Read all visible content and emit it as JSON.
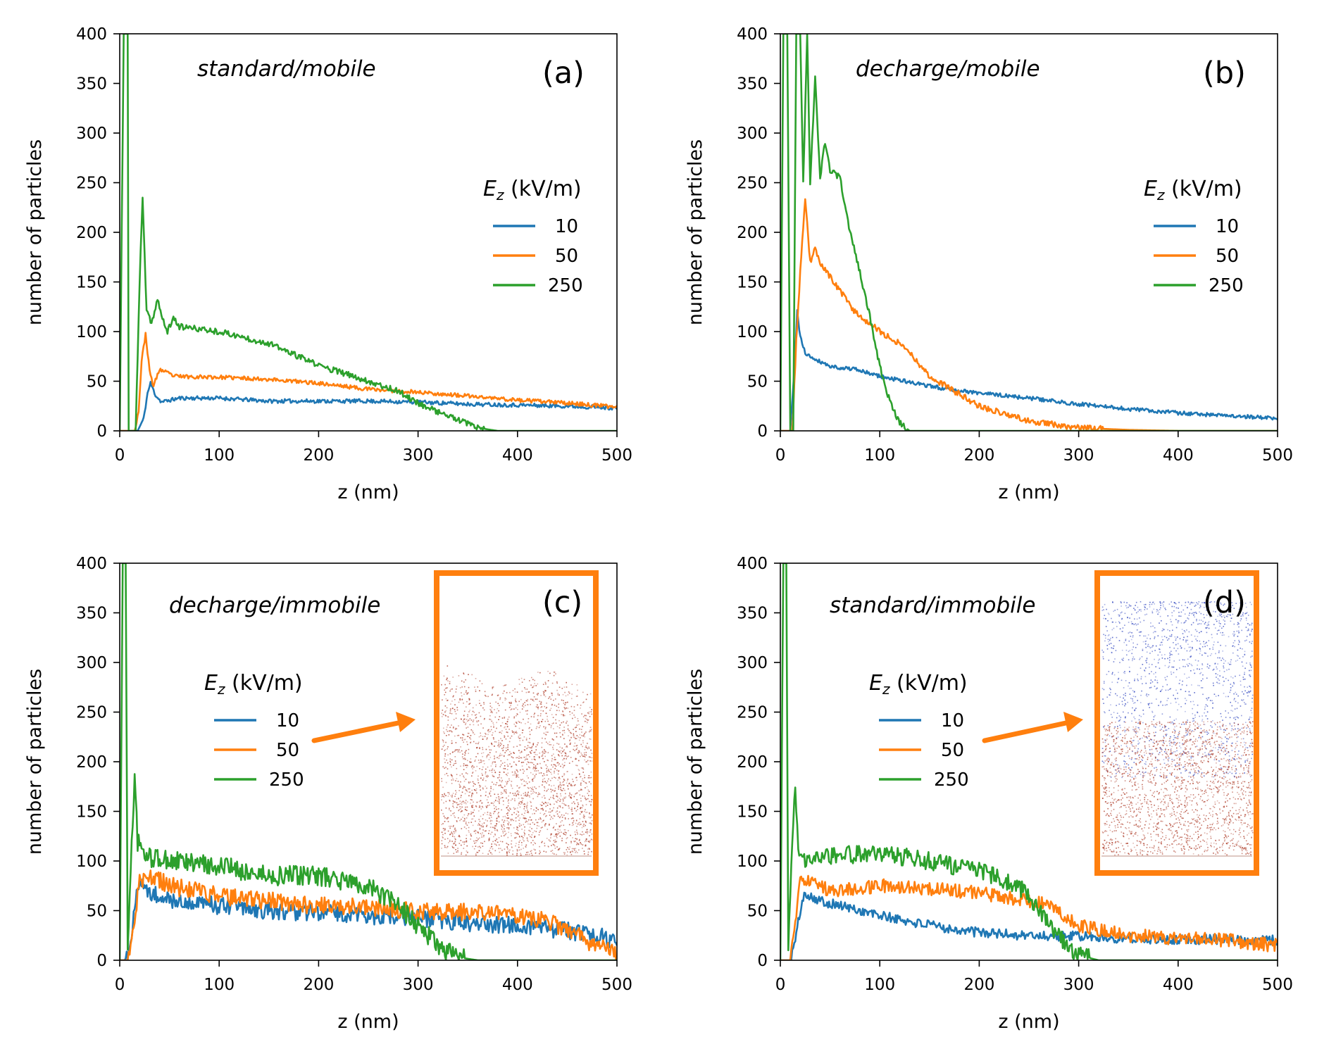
{
  "figure": {
    "width": 1870,
    "height": 1500
  },
  "colors": {
    "blue": "#1f77b4",
    "orange": "#ff7f0e",
    "green": "#2ca02c",
    "inset_frame": "#ff7f0e",
    "particle_red": "#b0412e",
    "particle_blue": "#3a4fc2"
  },
  "legend": {
    "title_main": "E",
    "title_sub": "z",
    "title_unit": " (kV/m)"
  },
  "chart_data": [
    {
      "panel": "a",
      "type": "line",
      "subtitle": "standard/mobile",
      "panel_label": "(a)",
      "xlabel": "z (nm)",
      "ylabel": "number of particles",
      "xlim": [
        0,
        500
      ],
      "ylim": [
        0,
        400
      ],
      "xticks": [
        0,
        100,
        200,
        300,
        400,
        500
      ],
      "yticks": [
        0,
        50,
        100,
        150,
        200,
        250,
        300,
        350,
        400
      ],
      "legend_position": "center-right",
      "legend_layout": "a",
      "inset": null,
      "series": [
        {
          "name": "10",
          "color_key": "blue",
          "noise": 2,
          "seed": 11,
          "points": [
            [
              0,
              0
            ],
            [
              18,
              0
            ],
            [
              24,
              12
            ],
            [
              28,
              38
            ],
            [
              31,
              48
            ],
            [
              36,
              36
            ],
            [
              42,
              29
            ],
            [
              60,
              33
            ],
            [
              100,
              33
            ],
            [
              150,
              30
            ],
            [
              200,
              30
            ],
            [
              250,
              30
            ],
            [
              300,
              29
            ],
            [
              350,
              27
            ],
            [
              400,
              26
            ],
            [
              450,
              25
            ],
            [
              500,
              23
            ]
          ]
        },
        {
          "name": "50",
          "color_key": "orange",
          "noise": 2,
          "seed": 23,
          "points": [
            [
              0,
              0
            ],
            [
              15,
              0
            ],
            [
              19,
              20
            ],
            [
              22,
              70
            ],
            [
              26,
              98
            ],
            [
              30,
              60
            ],
            [
              34,
              45
            ],
            [
              40,
              62
            ],
            [
              55,
              55
            ],
            [
              100,
              54
            ],
            [
              150,
              52
            ],
            [
              200,
              48
            ],
            [
              250,
              42
            ],
            [
              300,
              39
            ],
            [
              350,
              35
            ],
            [
              400,
              31
            ],
            [
              450,
              28
            ],
            [
              500,
              24
            ]
          ]
        },
        {
          "name": "250",
          "color_key": "green",
          "noise": 3,
          "seed": 37,
          "points": [
            [
              0,
              0
            ],
            [
              4,
              400
            ],
            [
              8,
              400
            ],
            [
              9,
              0
            ],
            [
              16,
              0
            ],
            [
              20,
              150
            ],
            [
              23,
              235
            ],
            [
              27,
              120
            ],
            [
              32,
              108
            ],
            [
              38,
              133
            ],
            [
              43,
              112
            ],
            [
              48,
              100
            ],
            [
              54,
              114
            ],
            [
              60,
              105
            ],
            [
              100,
              100
            ],
            [
              150,
              88
            ],
            [
              200,
              66
            ],
            [
              250,
              50
            ],
            [
              280,
              40
            ],
            [
              300,
              28
            ],
            [
              330,
              15
            ],
            [
              360,
              3
            ],
            [
              380,
              0
            ],
            [
              500,
              0
            ]
          ]
        }
      ]
    },
    {
      "panel": "b",
      "type": "line",
      "subtitle": "decharge/mobile",
      "panel_label": "(b)",
      "xlabel": "z (nm)",
      "ylabel": "number of particles",
      "xlim": [
        0,
        500
      ],
      "ylim": [
        0,
        400
      ],
      "xticks": [
        0,
        100,
        200,
        300,
        400,
        500
      ],
      "yticks": [
        0,
        50,
        100,
        150,
        200,
        250,
        300,
        350,
        400
      ],
      "legend_position": "center-right",
      "legend_layout": "a",
      "inset": null,
      "series": [
        {
          "name": "10",
          "color_key": "blue",
          "noise": 2,
          "seed": 41,
          "points": [
            [
              0,
              0
            ],
            [
              10,
              0
            ],
            [
              14,
              60
            ],
            [
              17,
              120
            ],
            [
              20,
              95
            ],
            [
              25,
              78
            ],
            [
              30,
              75
            ],
            [
              50,
              65
            ],
            [
              75,
              62
            ],
            [
              100,
              55
            ],
            [
              150,
              45
            ],
            [
              200,
              38
            ],
            [
              250,
              33
            ],
            [
              300,
              27
            ],
            [
              350,
              22
            ],
            [
              400,
              18
            ],
            [
              450,
              15
            ],
            [
              500,
              13
            ]
          ]
        },
        {
          "name": "50",
          "color_key": "orange",
          "noise": 3,
          "seed": 53,
          "points": [
            [
              0,
              0
            ],
            [
              12,
              0
            ],
            [
              16,
              90
            ],
            [
              20,
              160
            ],
            [
              25,
              232
            ],
            [
              30,
              170
            ],
            [
              35,
              183
            ],
            [
              40,
              170
            ],
            [
              50,
              155
            ],
            [
              75,
              120
            ],
            [
              100,
              100
            ],
            [
              125,
              85
            ],
            [
              150,
              55
            ],
            [
              175,
              40
            ],
            [
              200,
              25
            ],
            [
              250,
              10
            ],
            [
              300,
              3
            ],
            [
              350,
              1
            ],
            [
              400,
              0
            ],
            [
              500,
              0
            ]
          ]
        },
        {
          "name": "250",
          "color_key": "green",
          "noise": 3,
          "seed": 67,
          "points": [
            [
              0,
              0
            ],
            [
              3,
              400
            ],
            [
              7,
              400
            ],
            [
              10,
              0
            ],
            [
              13,
              0
            ],
            [
              16,
              400
            ],
            [
              20,
              400
            ],
            [
              23,
              250
            ],
            [
              27,
              400
            ],
            [
              30,
              250
            ],
            [
              35,
              357
            ],
            [
              40,
              255
            ],
            [
              45,
              292
            ],
            [
              50,
              262
            ],
            [
              60,
              255
            ],
            [
              70,
              200
            ],
            [
              80,
              160
            ],
            [
              90,
              115
            ],
            [
              100,
              65
            ],
            [
              110,
              30
            ],
            [
              120,
              8
            ],
            [
              130,
              0
            ],
            [
              500,
              0
            ]
          ]
        }
      ]
    },
    {
      "panel": "c",
      "type": "line",
      "subtitle": "decharge/immobile",
      "panel_label": "(c)",
      "xlabel": "z (nm)",
      "ylabel": "number of particles",
      "xlim": [
        0,
        500
      ],
      "ylim": [
        0,
        400
      ],
      "xticks": [
        0,
        100,
        200,
        300,
        400,
        500
      ],
      "yticks": [
        0,
        50,
        100,
        150,
        200,
        250,
        300,
        350,
        400
      ],
      "legend_position": "center-left",
      "legend_layout": "c",
      "inset": {
        "kind": "red",
        "seed": 5
      },
      "series": [
        {
          "name": "10",
          "color_key": "blue",
          "noise": 9,
          "seed": 71,
          "points": [
            [
              0,
              0
            ],
            [
              5,
              0
            ],
            [
              10,
              10
            ],
            [
              15,
              55
            ],
            [
              20,
              75
            ],
            [
              30,
              70
            ],
            [
              50,
              60
            ],
            [
              100,
              55
            ],
            [
              150,
              50
            ],
            [
              200,
              48
            ],
            [
              250,
              45
            ],
            [
              300,
              42
            ],
            [
              350,
              38
            ],
            [
              400,
              35
            ],
            [
              450,
              30
            ],
            [
              500,
              20
            ]
          ]
        },
        {
          "name": "50",
          "color_key": "orange",
          "noise": 9,
          "seed": 83,
          "points": [
            [
              0,
              0
            ],
            [
              8,
              0
            ],
            [
              12,
              20
            ],
            [
              20,
              80
            ],
            [
              30,
              85
            ],
            [
              50,
              75
            ],
            [
              100,
              65
            ],
            [
              150,
              60
            ],
            [
              200,
              55
            ],
            [
              250,
              53
            ],
            [
              300,
              50
            ],
            [
              350,
              48
            ],
            [
              400,
              45
            ],
            [
              430,
              40
            ],
            [
              460,
              25
            ],
            [
              480,
              15
            ],
            [
              500,
              5
            ]
          ]
        },
        {
          "name": "250",
          "color_key": "green",
          "noise": 10,
          "seed": 97,
          "points": [
            [
              0,
              0
            ],
            [
              3,
              400
            ],
            [
              6,
              400
            ],
            [
              8,
              10
            ],
            [
              12,
              120
            ],
            [
              15,
              182
            ],
            [
              18,
              120
            ],
            [
              25,
              105
            ],
            [
              50,
              100
            ],
            [
              100,
              95
            ],
            [
              150,
              85
            ],
            [
              200,
              85
            ],
            [
              250,
              75
            ],
            [
              280,
              55
            ],
            [
              300,
              35
            ],
            [
              320,
              15
            ],
            [
              340,
              3
            ],
            [
              360,
              0
            ],
            [
              500,
              0
            ]
          ]
        }
      ]
    },
    {
      "panel": "d",
      "type": "line",
      "subtitle": "standard/immobile",
      "panel_label": "(d)",
      "xlabel": "z (nm)",
      "ylabel": "number of particles",
      "xlim": [
        0,
        500
      ],
      "ylim": [
        0,
        400
      ],
      "xticks": [
        0,
        100,
        200,
        300,
        400,
        500
      ],
      "yticks": [
        0,
        50,
        100,
        150,
        200,
        250,
        300,
        350,
        400
      ],
      "legend_position": "center-left",
      "legend_layout": "c",
      "inset": {
        "kind": "mixed",
        "seed": 9
      },
      "series": [
        {
          "name": "10",
          "color_key": "blue",
          "noise": 5,
          "seed": 101,
          "points": [
            [
              0,
              0
            ],
            [
              10,
              0
            ],
            [
              15,
              20
            ],
            [
              20,
              50
            ],
            [
              25,
              68
            ],
            [
              40,
              60
            ],
            [
              60,
              55
            ],
            [
              100,
              45
            ],
            [
              150,
              35
            ],
            [
              200,
              28
            ],
            [
              250,
              25
            ],
            [
              300,
              24
            ],
            [
              350,
              22
            ],
            [
              400,
              21
            ],
            [
              450,
              21
            ],
            [
              500,
              20
            ]
          ]
        },
        {
          "name": "50",
          "color_key": "orange",
          "noise": 7,
          "seed": 113,
          "points": [
            [
              0,
              0
            ],
            [
              10,
              0
            ],
            [
              15,
              40
            ],
            [
              20,
              80
            ],
            [
              30,
              78
            ],
            [
              50,
              70
            ],
            [
              100,
              75
            ],
            [
              150,
              72
            ],
            [
              200,
              68
            ],
            [
              250,
              60
            ],
            [
              270,
              55
            ],
            [
              300,
              35
            ],
            [
              350,
              25
            ],
            [
              400,
              22
            ],
            [
              450,
              20
            ],
            [
              500,
              15
            ]
          ]
        },
        {
          "name": "250",
          "color_key": "green",
          "noise": 9,
          "seed": 127,
          "points": [
            [
              0,
              0
            ],
            [
              3,
              400
            ],
            [
              6,
              400
            ],
            [
              8,
              10
            ],
            [
              12,
              120
            ],
            [
              15,
              170
            ],
            [
              18,
              110
            ],
            [
              25,
              100
            ],
            [
              50,
              105
            ],
            [
              100,
              108
            ],
            [
              150,
              100
            ],
            [
              200,
              90
            ],
            [
              240,
              75
            ],
            [
              260,
              50
            ],
            [
              280,
              25
            ],
            [
              300,
              5
            ],
            [
              320,
              0
            ],
            [
              500,
              0
            ]
          ]
        }
      ]
    }
  ]
}
